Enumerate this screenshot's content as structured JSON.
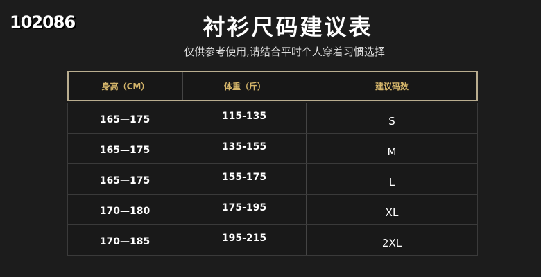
{
  "watermark": "102086",
  "title": "衬衫尺码建议表",
  "subtitle": "仅供参考使用,请结合平时个人穿着习惯选择",
  "table": {
    "headers": [
      "身高（CM）",
      "体重（斤）",
      "建议码数"
    ],
    "rows": [
      [
        "165—175",
        "115-135",
        "S"
      ],
      [
        "165—175",
        "135-155",
        "M"
      ],
      [
        "165—175",
        "155-175",
        "L"
      ],
      [
        "170—180",
        "175-195",
        "XL"
      ],
      [
        "170—185",
        "195-215",
        "2XL"
      ]
    ]
  },
  "colors": {
    "background": "#1c1c1c",
    "header_text": "#d4b56a",
    "border": "#b9ad8f"
  }
}
